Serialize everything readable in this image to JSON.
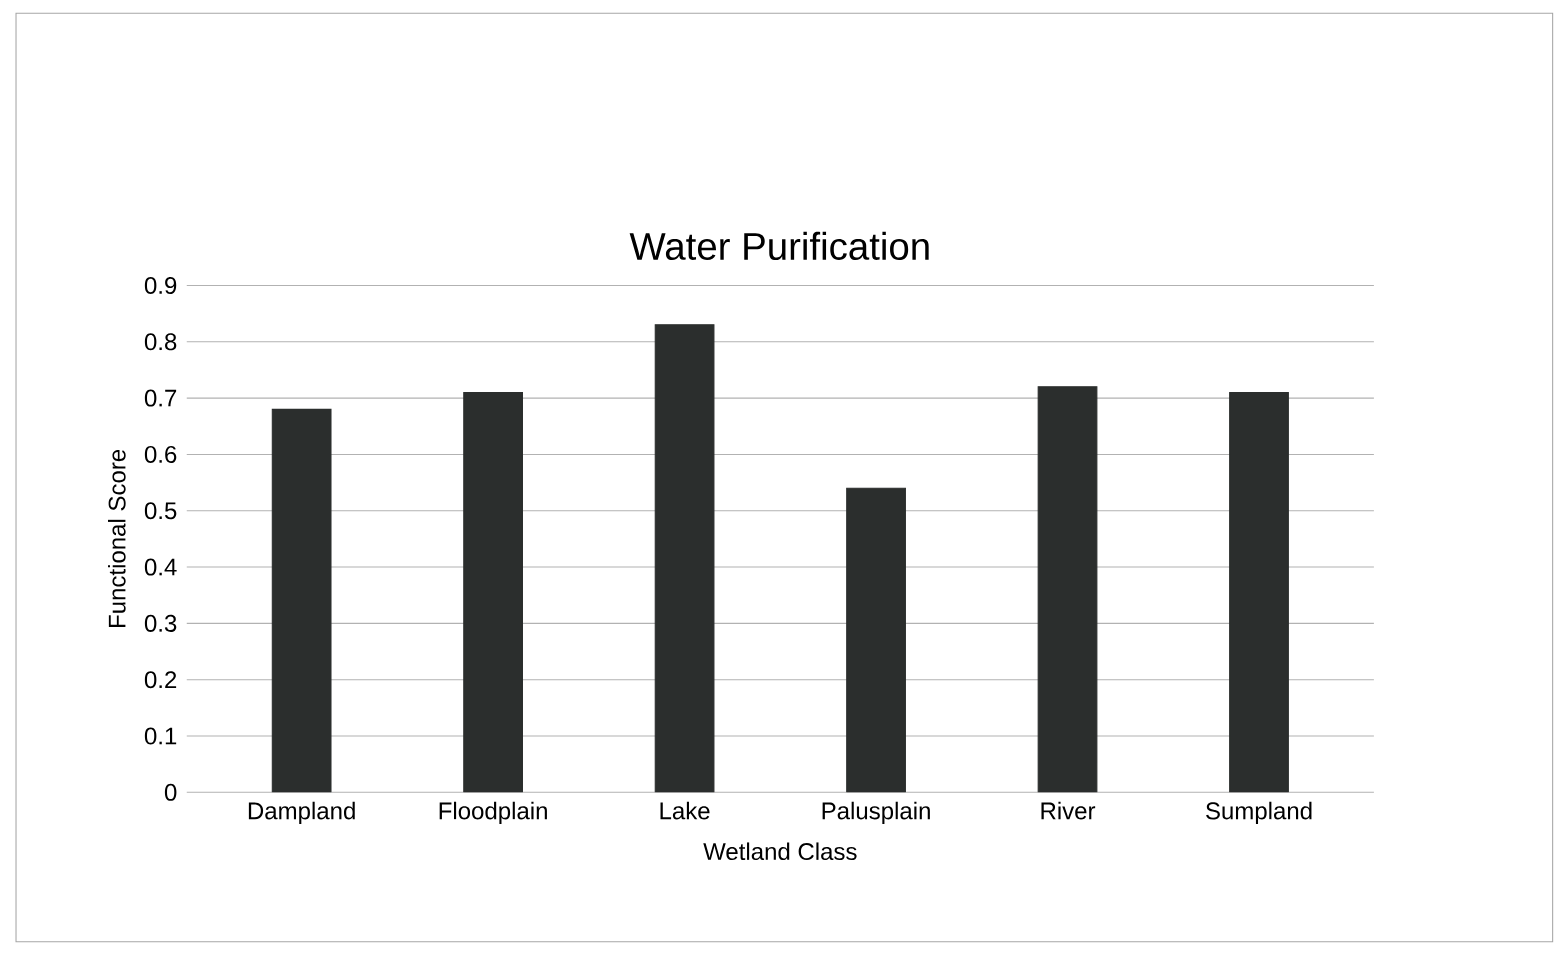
{
  "chart_data": {
    "type": "bar",
    "title": "Water Purification",
    "xlabel": "Wetland Class",
    "ylabel": "Functional Score",
    "categories": [
      "Dampland",
      "Floodplain",
      "Lake",
      "Palusplain",
      "River",
      "Sumpland"
    ],
    "values": [
      0.68,
      0.71,
      0.83,
      0.54,
      0.72,
      0.71
    ],
    "color": "#2b2e2d",
    "ylim": [
      0,
      0.9
    ],
    "yticks": [
      0,
      0.1,
      0.2,
      0.3,
      0.4,
      0.5,
      0.6,
      0.7,
      0.8,
      0.9
    ],
    "grid": "y"
  }
}
